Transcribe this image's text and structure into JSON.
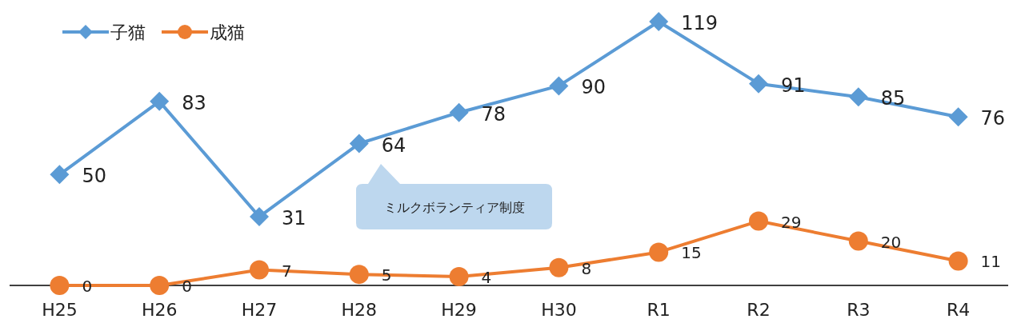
{
  "chart_data": {
    "type": "line",
    "categories": [
      "H25",
      "H26",
      "H27",
      "H28",
      "H29",
      "H30",
      "R1",
      "R2",
      "R3",
      "R4"
    ],
    "series": [
      {
        "name": "子猫",
        "color": "#5b9bd5",
        "marker": "diamond",
        "values": [
          50,
          83,
          31,
          64,
          78,
          90,
          119,
          91,
          85,
          76
        ]
      },
      {
        "name": "成猫",
        "color": "#ed7d31",
        "marker": "circle",
        "values": [
          0,
          0,
          7,
          5,
          4,
          8,
          15,
          29,
          20,
          11
        ]
      }
    ],
    "data_labels": true,
    "legend": "top left",
    "annotations": [
      "ミルクボランティア制度"
    ]
  }
}
